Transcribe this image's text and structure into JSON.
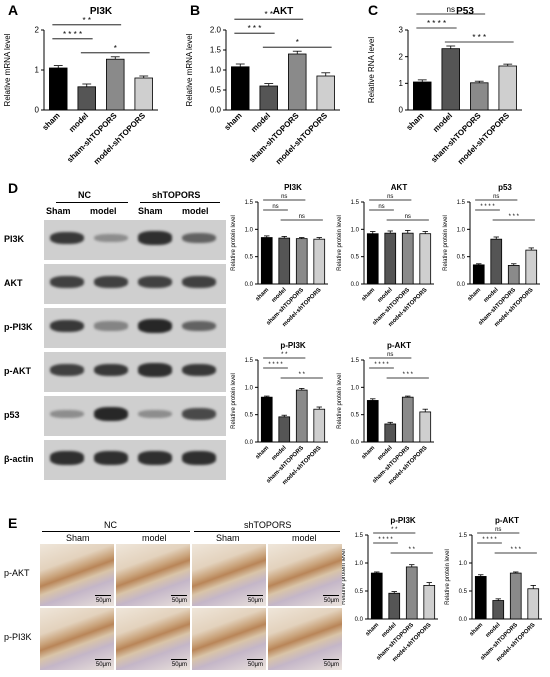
{
  "panels": {
    "A": "A",
    "B": "B",
    "C": "C",
    "D": "D",
    "E": "E"
  },
  "colors": {
    "sham": "#000000",
    "model": "#555555",
    "sham-shTOPORS": "#8a8a8a",
    "model-shTOPORS": "#cfcfcf"
  },
  "chart_data": [
    {
      "id": "A",
      "type": "bar",
      "title": "PI3K",
      "xlabel": "",
      "ylabel": "Relative mRNA level",
      "ylim": [
        0,
        2
      ],
      "yticks": [
        0,
        1,
        2
      ],
      "categories": [
        "sham",
        "model",
        "sham-shTOPORS",
        "model-shTOPORS"
      ],
      "values": [
        1.05,
        0.58,
        1.27,
        0.8
      ],
      "errors": [
        0.06,
        0.07,
        0.06,
        0.05
      ],
      "significance": [
        {
          "from": 0,
          "to": 1,
          "label": "* * * *"
        },
        {
          "from": 0,
          "to": 2,
          "label": "* *"
        },
        {
          "from": 1,
          "to": 3,
          "label": "*"
        }
      ]
    },
    {
      "id": "B",
      "type": "bar",
      "title": "AKT",
      "xlabel": "",
      "ylabel": "Relative mRNA level",
      "ylim": [
        0,
        2
      ],
      "yticks": [
        0.0,
        0.5,
        1.0,
        1.5,
        2.0
      ],
      "categories": [
        "sham",
        "model",
        "sham-shTOPORS",
        "model-shTOPORS"
      ],
      "values": [
        1.08,
        0.6,
        1.4,
        0.85
      ],
      "errors": [
        0.07,
        0.06,
        0.07,
        0.08
      ],
      "significance": [
        {
          "from": 0,
          "to": 1,
          "label": "* * *"
        },
        {
          "from": 0,
          "to": 2,
          "label": "* *"
        },
        {
          "from": 1,
          "to": 3,
          "label": "*"
        }
      ]
    },
    {
      "id": "C",
      "type": "bar",
      "title": "P53",
      "xlabel": "",
      "ylabel": "Relative RNA level",
      "ylim": [
        0,
        3
      ],
      "yticks": [
        0,
        1,
        2,
        3
      ],
      "categories": [
        "sham",
        "model",
        "sham-shTOPORS",
        "model-shTOPORS"
      ],
      "values": [
        1.05,
        2.3,
        1.02,
        1.65
      ],
      "errors": [
        0.08,
        0.1,
        0.06,
        0.07
      ],
      "significance": [
        {
          "from": 0,
          "to": 1,
          "label": "* * * *"
        },
        {
          "from": 0,
          "to": 2,
          "label": "ns"
        },
        {
          "from": 1,
          "to": 3,
          "label": "* * *"
        }
      ]
    },
    {
      "id": "D-PI3K",
      "type": "bar",
      "title": "PI3K",
      "xlabel": "",
      "ylabel": "Relative protein level",
      "ylim": [
        0,
        1.5
      ],
      "yticks": [
        0.0,
        0.5,
        1.0,
        1.5
      ],
      "categories": [
        "sham",
        "model",
        "sham-shTOPORS",
        "model-shTOPORS"
      ],
      "values": [
        0.85,
        0.84,
        0.83,
        0.82
      ],
      "errors": [
        0.03,
        0.03,
        0.02,
        0.03
      ],
      "significance": [
        {
          "from": 0,
          "to": 1,
          "label": "ns"
        },
        {
          "from": 0,
          "to": 2,
          "label": "ns"
        },
        {
          "from": 1,
          "to": 3,
          "label": "ns"
        }
      ]
    },
    {
      "id": "D-AKT",
      "type": "bar",
      "title": "AKT",
      "xlabel": "",
      "ylabel": "Relative protein level",
      "ylim": [
        0,
        1.5
      ],
      "yticks": [
        0.0,
        0.5,
        1.0,
        1.5
      ],
      "categories": [
        "sham",
        "model",
        "sham-shTOPORS",
        "model-shTOPORS"
      ],
      "values": [
        0.92,
        0.93,
        0.93,
        0.92
      ],
      "errors": [
        0.04,
        0.04,
        0.05,
        0.04
      ],
      "significance": [
        {
          "from": 0,
          "to": 1,
          "label": "ns"
        },
        {
          "from": 0,
          "to": 2,
          "label": "ns"
        },
        {
          "from": 1,
          "to": 3,
          "label": "ns"
        }
      ]
    },
    {
      "id": "D-p53",
      "type": "bar",
      "title": "p53",
      "xlabel": "",
      "ylabel": "Relative protein level",
      "ylim": [
        0,
        1.5
      ],
      "yticks": [
        0.0,
        0.5,
        1.0,
        1.5
      ],
      "categories": [
        "sham",
        "model",
        "sham-shTOPORS",
        "model-shTOPORS"
      ],
      "values": [
        0.35,
        0.82,
        0.34,
        0.62
      ],
      "errors": [
        0.02,
        0.04,
        0.03,
        0.04
      ],
      "significance": [
        {
          "from": 0,
          "to": 1,
          "label": "* * * *"
        },
        {
          "from": 0,
          "to": 2,
          "label": "ns"
        },
        {
          "from": 1,
          "to": 3,
          "label": "* * *"
        }
      ]
    },
    {
      "id": "D-pPI3K",
      "type": "bar",
      "title": "p-PI3K",
      "xlabel": "",
      "ylabel": "Relative protein level",
      "ylim": [
        0,
        1.5
      ],
      "yticks": [
        0.0,
        0.5,
        1.0,
        1.5
      ],
      "categories": [
        "sham",
        "model",
        "sham-shTOPORS",
        "model-shTOPORS"
      ],
      "values": [
        0.82,
        0.46,
        0.95,
        0.6
      ],
      "errors": [
        0.02,
        0.03,
        0.03,
        0.04
      ],
      "significance": [
        {
          "from": 0,
          "to": 1,
          "label": "* * * *"
        },
        {
          "from": 0,
          "to": 2,
          "label": "* *"
        },
        {
          "from": 1,
          "to": 3,
          "label": "* *"
        }
      ]
    },
    {
      "id": "D-pAKT",
      "type": "bar",
      "title": "p-AKT",
      "xlabel": "",
      "ylabel": "Relative protein level",
      "ylim": [
        0,
        1.5
      ],
      "yticks": [
        0.0,
        0.5,
        1.0,
        1.5
      ],
      "categories": [
        "sham",
        "model",
        "sham-shTOPORS",
        "model-shTOPORS"
      ],
      "values": [
        0.76,
        0.33,
        0.82,
        0.55
      ],
      "errors": [
        0.03,
        0.03,
        0.02,
        0.05
      ],
      "significance": [
        {
          "from": 0,
          "to": 1,
          "label": "* * * *"
        },
        {
          "from": 0,
          "to": 2,
          "label": "ns"
        },
        {
          "from": 1,
          "to": 3,
          "label": "* * *"
        }
      ]
    },
    {
      "id": "E-pPI3K",
      "type": "bar",
      "title": "p-PI3K",
      "xlabel": "",
      "ylabel": "Relative protein level",
      "ylim": [
        0,
        1.5
      ],
      "yticks": [
        0.0,
        0.5,
        1.0,
        1.5
      ],
      "categories": [
        "sham",
        "model",
        "sham-shTOPORS",
        "model-shTOPORS"
      ],
      "values": [
        0.82,
        0.46,
        0.93,
        0.6
      ],
      "errors": [
        0.02,
        0.03,
        0.04,
        0.05
      ],
      "significance": [
        {
          "from": 0,
          "to": 1,
          "label": "* * * *"
        },
        {
          "from": 0,
          "to": 2,
          "label": "* *"
        },
        {
          "from": 1,
          "to": 3,
          "label": "* *"
        }
      ]
    },
    {
      "id": "E-pAKT",
      "type": "bar",
      "title": "p-AKT",
      "xlabel": "",
      "ylabel": "Relative protein level",
      "ylim": [
        0,
        1.5
      ],
      "yticks": [
        0.0,
        0.5,
        1.0,
        1.5
      ],
      "categories": [
        "sham",
        "model",
        "sham-shTOPORS",
        "model-shTOPORS"
      ],
      "values": [
        0.76,
        0.33,
        0.82,
        0.54
      ],
      "errors": [
        0.03,
        0.03,
        0.02,
        0.06
      ],
      "significance": [
        {
          "from": 0,
          "to": 1,
          "label": "* * * *"
        },
        {
          "from": 0,
          "to": 2,
          "label": "ns"
        },
        {
          "from": 1,
          "to": 3,
          "label": "* * *"
        }
      ]
    }
  ],
  "western_blot": {
    "group_labels": [
      "NC",
      "shTOPORS"
    ],
    "lane_labels": [
      "Sham",
      "model",
      "Sham",
      "model"
    ],
    "rows": [
      {
        "label": "PI3K",
        "intensity": [
          0.85,
          0.35,
          0.9,
          0.6
        ]
      },
      {
        "label": "AKT",
        "intensity": [
          0.8,
          0.8,
          0.8,
          0.8
        ]
      },
      {
        "label": "p-PI3K",
        "intensity": [
          0.85,
          0.4,
          0.95,
          0.6
        ]
      },
      {
        "label": "p-AKT",
        "intensity": [
          0.8,
          0.85,
          0.9,
          0.85
        ]
      },
      {
        "label": "p53",
        "intensity": [
          0.35,
          0.95,
          0.35,
          0.75
        ]
      },
      {
        "label": "β-actin",
        "intensity": [
          0.9,
          0.9,
          0.9,
          0.9
        ]
      }
    ]
  },
  "ihc": {
    "group_labels": [
      "NC",
      "shTOPORS"
    ],
    "column_labels": [
      "Sham",
      "model",
      "Sham",
      "model"
    ],
    "row_labels": [
      "p-AKT",
      "p-PI3K"
    ],
    "scale_bar": "50μm"
  }
}
